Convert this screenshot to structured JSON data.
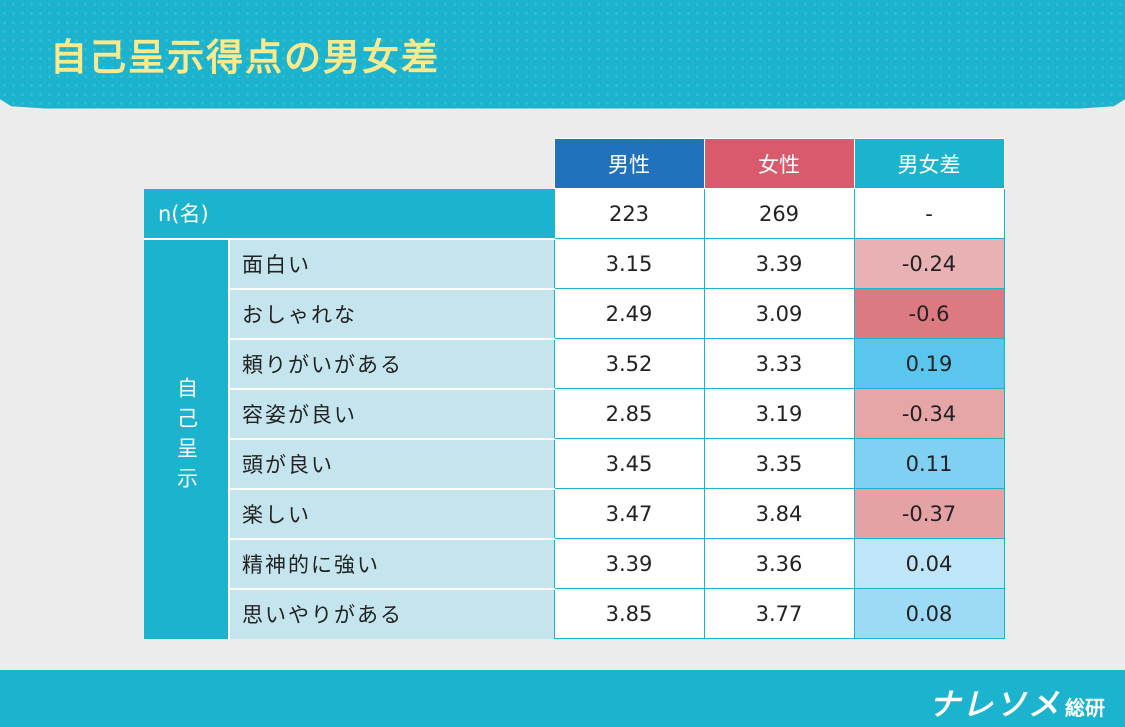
{
  "title": "自己呈示得点の男女差",
  "columns": {
    "male": "男性",
    "female": "女性",
    "diff": "男女差"
  },
  "n_row": {
    "label": "n(名)",
    "male": "223",
    "female": "269",
    "diff": "-"
  },
  "side_label": "自己呈示",
  "rows": [
    {
      "label": "面白い",
      "male": "3.15",
      "female": "3.39",
      "diff": "-0.24",
      "color": "#e8b1b3"
    },
    {
      "label": "おしゃれな",
      "male": "2.49",
      "female": "3.09",
      "diff": "-0.6",
      "color": "#db7a81"
    },
    {
      "label": "頼りがいがある",
      "male": "3.52",
      "female": "3.33",
      "diff": "0.19",
      "color": "#5ac6ee"
    },
    {
      "label": "容姿が良い",
      "male": "2.85",
      "female": "3.19",
      "diff": "-0.34",
      "color": "#e6a5a7"
    },
    {
      "label": "頭が良い",
      "male": "3.45",
      "female": "3.35",
      "diff": "0.11",
      "color": "#7fd0f2"
    },
    {
      "label": "楽しい",
      "male": "3.47",
      "female": "3.84",
      "diff": "-0.37",
      "color": "#e5a2a4"
    },
    {
      "label": "精神的に強い",
      "male": "3.39",
      "female": "3.36",
      "diff": "0.04",
      "color": "#bfe5f8"
    },
    {
      "label": "思いやりがある",
      "male": "3.85",
      "female": "3.77",
      "diff": "0.08",
      "color": "#9cdaf5"
    }
  ],
  "chart_data": {
    "type": "table",
    "title": "自己呈示得点の男女差",
    "columns": [
      "男性",
      "女性",
      "男女差"
    ],
    "n": {
      "男性": 223,
      "女性": 269,
      "男女差": "-"
    },
    "group": "自己呈示",
    "categories": [
      "面白い",
      "おしゃれな",
      "頼りがいがある",
      "容姿が良い",
      "頭が良い",
      "楽しい",
      "精神的に強い",
      "思いやりがある"
    ],
    "series": [
      {
        "name": "男性",
        "values": [
          3.15,
          2.49,
          3.52,
          2.85,
          3.45,
          3.47,
          3.39,
          3.85
        ]
      },
      {
        "name": "女性",
        "values": [
          3.39,
          3.09,
          3.33,
          3.19,
          3.35,
          3.84,
          3.36,
          3.77
        ]
      },
      {
        "name": "男女差",
        "values": [
          -0.24,
          -0.6,
          0.19,
          -0.34,
          0.11,
          -0.37,
          0.04,
          0.08
        ]
      }
    ]
  },
  "logo": {
    "main": "ナレソメ",
    "sub": "総研"
  }
}
